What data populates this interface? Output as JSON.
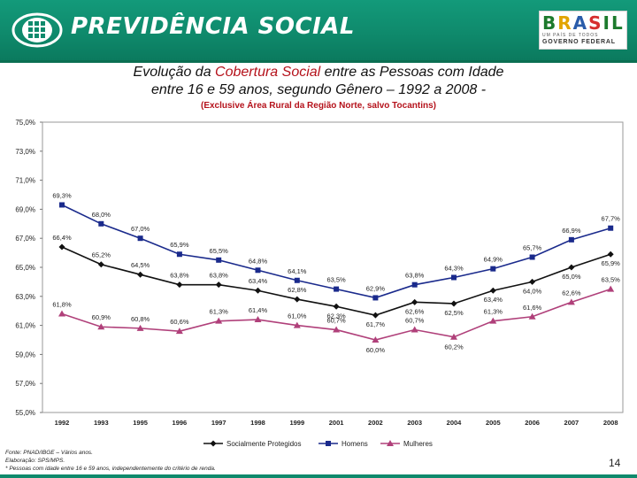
{
  "header": {
    "title": "PREVIDÊNCIA SOCIAL",
    "gov_brand_letters": [
      "B",
      "R",
      "A",
      "S",
      "IL"
    ],
    "gov_tagline": "UM PAÍS DE TODOS",
    "gov_name": "GOVERNO FEDERAL",
    "colors": {
      "header_green": "#0f8a6c"
    }
  },
  "title": {
    "line1_prefix": "Evolução da ",
    "line1_highlight": "Cobertura Social",
    "line1_suffix": " entre as Pessoas com Idade",
    "line2": "entre 16 e 59 anos, segundo Gênero – 1992 a 2008 -",
    "subtitle": "(Exclusive Área Rural da Região Norte, salvo Tocantins)"
  },
  "chart_data": {
    "type": "line",
    "categories": [
      "1992",
      "1993",
      "1995",
      "1996",
      "1997",
      "1998",
      "1999",
      "2001",
      "2002",
      "2003",
      "2004",
      "2005",
      "2006",
      "2007",
      "2008"
    ],
    "y_ticks": [
      "75,0%",
      "73,0%",
      "71,0%",
      "69,0%",
      "67,0%",
      "65,0%",
      "63,0%",
      "61,0%",
      "59,0%",
      "57,0%",
      "55,0%"
    ],
    "ylim": [
      55,
      75
    ],
    "series": [
      {
        "name": "Socialmente Protegidos",
        "color": "#111111",
        "marker": "diamond",
        "values": [
          66.4,
          65.2,
          64.5,
          63.8,
          63.8,
          63.4,
          62.8,
          62.3,
          61.7,
          62.6,
          62.5,
          63.4,
          64.0,
          65.0,
          65.9
        ],
        "labels": [
          "66,4%",
          "65,2%",
          "64,5%",
          "63,8%",
          "63,8%",
          "63,4%",
          "62,8%",
          "62,3%",
          "61,7%",
          "62,6%",
          "62,5%",
          "63,4%",
          "64,0%",
          "65,0%",
          "65,9%"
        ]
      },
      {
        "name": "Homens",
        "color": "#1a2a8c",
        "marker": "square",
        "values": [
          69.3,
          68.0,
          67.0,
          65.9,
          65.5,
          64.8,
          64.1,
          63.5,
          62.9,
          63.8,
          64.3,
          64.9,
          65.7,
          66.9,
          67.7
        ],
        "labels": [
          "69,3%",
          "68,0%",
          "67,0%",
          "65,9%",
          "65,5%",
          "64,8%",
          "64,1%",
          "63,5%",
          "62,9%",
          "63,8%",
          "64,3%",
          "64,9%",
          "65,7%",
          "66,9%",
          "67,7%"
        ]
      },
      {
        "name": "Mulheres",
        "color": "#b0407a",
        "marker": "triangle",
        "values": [
          61.8,
          60.9,
          60.8,
          60.6,
          61.3,
          61.4,
          61.0,
          60.7,
          60.0,
          60.7,
          60.2,
          61.3,
          61.6,
          62.6,
          63.5
        ],
        "labels": [
          "61,8%",
          "60,9%",
          "60,8%",
          "60,6%",
          "61,3%",
          "61,4%",
          "61,0%",
          "60,7%",
          "60,0%",
          "60,7%",
          "60,2%",
          "61,3%",
          "61,6%",
          "62,6%",
          "63,5%"
        ]
      }
    ]
  },
  "footer": {
    "source": "Fonte: PNAD/IBGE – Vários anos.",
    "elaboration": "Elaboração: SPS/MPS.",
    "note": "* Pessoas com idade entre 16 e 59 anos, independentemente do critério de renda.",
    "page_number": "14"
  }
}
